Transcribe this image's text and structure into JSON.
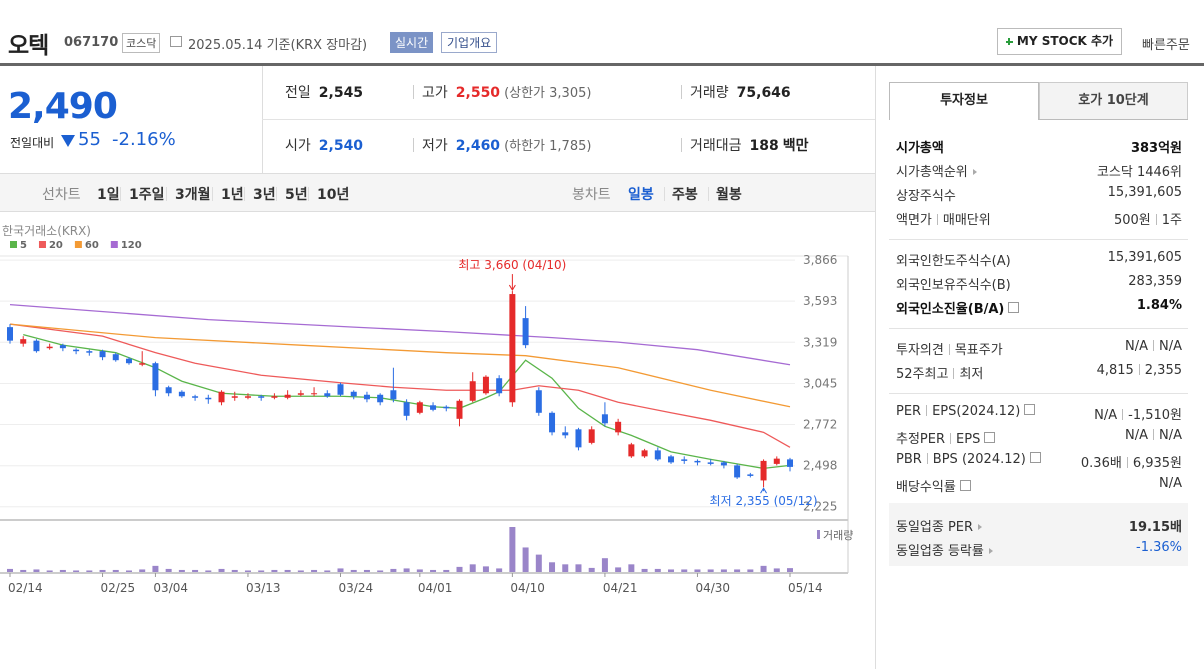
{
  "header": {
    "name": "오텍",
    "code": "067170",
    "market": "코스닥",
    "date": "2025.05.14",
    "basis": "기준(KRX 장마감)",
    "realtime": "실시간",
    "overview": "기업개요",
    "mystock": "MY STOCK 추가",
    "quick_order": "빠른주문"
  },
  "price": {
    "current": "2,490",
    "change_label": "전일대비",
    "change": "55",
    "change_pct": "-2.16%"
  },
  "stats": [
    {
      "label": "전일",
      "value": "2,545"
    },
    {
      "label": "고가",
      "value": "2,550",
      "note": "(상한가 3,305)"
    },
    {
      "label": "거래량",
      "value": "75,646"
    },
    {
      "label": "시가",
      "value": "2,540"
    },
    {
      "label": "저가",
      "value": "2,460",
      "note": "(하한가 1,785)"
    },
    {
      "label": "거래대금",
      "value": "188",
      "unit": "백만"
    }
  ],
  "period_tabs": {
    "line_label": "선차트",
    "line": [
      "1일",
      "1주일",
      "3개월",
      "1년",
      "3년",
      "5년",
      "10년"
    ],
    "candle_label": "봉차트",
    "candle": [
      "일봉",
      "주봉",
      "월봉"
    ]
  },
  "chart_data": {
    "type": "candlestick",
    "source": "한국거래소(KRX)",
    "categories": [
      "02/14",
      null,
      null,
      null,
      null,
      null,
      null,
      "02/25",
      null,
      null,
      null,
      "03/04",
      null,
      null,
      null,
      null,
      null,
      null,
      "03/13",
      null,
      null,
      null,
      null,
      null,
      null,
      "03/24",
      null,
      null,
      null,
      null,
      null,
      "04/01",
      null,
      null,
      null,
      null,
      null,
      null,
      "04/10",
      null,
      null,
      null,
      null,
      null,
      null,
      "04/21",
      null,
      null,
      null,
      null,
      null,
      null,
      "04/30",
      null,
      null,
      null,
      null,
      null,
      null,
      "05/14"
    ],
    "open": [
      3420,
      3310,
      3330,
      3280,
      3300,
      3270,
      3260,
      3260,
      3240,
      3210,
      3170,
      3180,
      3020,
      2990,
      2960,
      2950,
      2920,
      2950,
      2950,
      2960,
      2950,
      2950,
      2970,
      2980,
      2980,
      3040,
      2990,
      2970,
      2970,
      3000,
      2920,
      2850,
      2900,
      2890,
      2810,
      2930,
      2980,
      3080,
      2920,
      3480,
      3000,
      2850,
      2720,
      2740,
      2650,
      2840,
      2720,
      2560,
      2560,
      2600,
      2560,
      2540,
      2530,
      2520,
      2520,
      2500,
      2440,
      2400,
      2510,
      2540
    ],
    "high": [
      3440,
      3360,
      3340,
      3310,
      3310,
      3280,
      3270,
      3270,
      3250,
      3220,
      3260,
      3190,
      3030,
      3000,
      2970,
      2970,
      3000,
      2990,
      2980,
      2970,
      2980,
      3000,
      3000,
      3020,
      3000,
      3050,
      3000,
      2990,
      2980,
      3150,
      2940,
      2930,
      2920,
      2900,
      2940,
      3120,
      3100,
      3100,
      3660,
      3560,
      3020,
      2860,
      2760,
      2750,
      2760,
      2920,
      2810,
      2650,
      2610,
      2620,
      2570,
      2560,
      2540,
      2540,
      2530,
      2510,
      2450,
      2540,
      2560,
      2550
    ],
    "low": [
      3310,
      3290,
      3250,
      3270,
      3260,
      3240,
      3230,
      3200,
      3190,
      3170,
      3160,
      2960,
      2960,
      2950,
      2930,
      2910,
      2900,
      2930,
      2940,
      2930,
      2940,
      2940,
      2960,
      2960,
      2950,
      2960,
      2940,
      2920,
      2900,
      2920,
      2800,
      2840,
      2860,
      2860,
      2760,
      2920,
      2970,
      2960,
      2890,
      3280,
      2830,
      2700,
      2680,
      2600,
      2640,
      2760,
      2700,
      2550,
      2550,
      2530,
      2510,
      2510,
      2500,
      2500,
      2480,
      2410,
      2420,
      2355,
      2500,
      2460
    ],
    "close": [
      3330,
      3340,
      3260,
      3290,
      3280,
      3260,
      3250,
      3220,
      3200,
      3180,
      3180,
      3000,
      2980,
      2960,
      2950,
      2940,
      2990,
      2960,
      2960,
      2950,
      2960,
      2970,
      2980,
      2980,
      2960,
      2970,
      2960,
      2940,
      2920,
      2940,
      2830,
      2920,
      2870,
      2880,
      2930,
      3060,
      3090,
      2980,
      3640,
      3300,
      2850,
      2720,
      2700,
      2620,
      2740,
      2780,
      2790,
      2640,
      2600,
      2540,
      2520,
      2530,
      2520,
      2510,
      2500,
      2420,
      2430,
      2530,
      2545,
      2490
    ],
    "up_color": "#e52a2a",
    "down_color": "#2b6de3",
    "volume_label": "거래량",
    "volume_color": "#9a85c9",
    "volume": [
      60000,
      40000,
      50000,
      30000,
      40000,
      30000,
      30000,
      40000,
      40000,
      30000,
      50000,
      120000,
      60000,
      40000,
      40000,
      30000,
      60000,
      40000,
      30000,
      30000,
      40000,
      40000,
      30000,
      40000,
      30000,
      70000,
      40000,
      40000,
      30000,
      60000,
      70000,
      50000,
      40000,
      40000,
      100000,
      150000,
      110000,
      70000,
      880000,
      480000,
      340000,
      190000,
      150000,
      150000,
      80000,
      270000,
      90000,
      150000,
      60000,
      60000,
      50000,
      50000,
      50000,
      50000,
      50000,
      50000,
      50000,
      120000,
      70000,
      75646
    ],
    "series": [
      {
        "name": "5",
        "color": "#5ab54a",
        "x": [
          1,
          4,
          8,
          11,
          13,
          16,
          20,
          25,
          28,
          30,
          32,
          34,
          36,
          37,
          39,
          41,
          43,
          45,
          47,
          50,
          53,
          55,
          57,
          59
        ],
        "values": [
          3370,
          3300,
          3250,
          3150,
          3060,
          2980,
          2960,
          2960,
          2950,
          2920,
          2890,
          2880,
          2950,
          2990,
          3200,
          3080,
          2880,
          2760,
          2700,
          2590,
          2540,
          2510,
          2480,
          2500
        ]
      },
      {
        "name": "20",
        "color": "#ee5a5a",
        "x": [
          0,
          7,
          11,
          14,
          19,
          25,
          29,
          33,
          38,
          40,
          43,
          46,
          50,
          53,
          57,
          59
        ],
        "values": [
          3440,
          3360,
          3250,
          3180,
          3100,
          3050,
          3020,
          3000,
          3000,
          3030,
          3000,
          2920,
          2850,
          2800,
          2720,
          2620
        ]
      },
      {
        "name": "60",
        "color": "#f39a34",
        "x": [
          0,
          11,
          22,
          33,
          39,
          46,
          53,
          59
        ],
        "values": [
          3440,
          3350,
          3300,
          3250,
          3230,
          3150,
          3000,
          2890
        ]
      },
      {
        "name": "120",
        "color": "#a66bd3",
        "x": [
          0,
          15,
          26,
          33,
          41,
          46,
          52,
          59
        ],
        "values": [
          3570,
          3470,
          3420,
          3390,
          3350,
          3320,
          3270,
          3170
        ]
      }
    ],
    "annotations": [
      {
        "text": "최고 3,660 (04/10)",
        "x": 38
      },
      {
        "text": "최저 2,355 (05/12)",
        "x": 57
      }
    ],
    "ylim": [
      2150,
      3880
    ],
    "yticks": [
      {
        "value": 3866,
        "label": "3,866"
      },
      {
        "value": 3593,
        "label": "3,593"
      },
      {
        "value": 3319,
        "label": "3,319"
      },
      {
        "value": 3045,
        "label": "3,045"
      },
      {
        "value": 2772,
        "label": "2,772"
      },
      {
        "value": 2498,
        "label": "2,498"
      },
      {
        "value": 2225,
        "label": "2,225"
      }
    ],
    "grid": true
  },
  "info_panel": {
    "tabs": [
      "투자정보",
      "호가 10단계"
    ],
    "groups": [
      [
        {
          "label": [
            "시가총액"
          ],
          "value": [
            "383억원"
          ]
        },
        {
          "label": [
            "시가총액순위"
          ],
          "value": [
            "코스닥 1446위"
          ]
        },
        {
          "label": [
            "상장주식수"
          ],
          "value": [
            "15,391,605"
          ]
        },
        {
          "label": [
            "액면가",
            "매매단위"
          ],
          "value": [
            "500원",
            "1주"
          ]
        }
      ],
      [
        {
          "label": [
            "외국인한도주식수(A)"
          ],
          "value": [
            "15,391,605"
          ]
        },
        {
          "label": [
            "외국인보유주식수(B)"
          ],
          "value": [
            "283,359"
          ]
        },
        {
          "label": [
            "외국인소진율(B/A)"
          ],
          "value": [
            "1.84%"
          ]
        }
      ],
      [
        {
          "label": [
            "투자의견",
            "목표주가"
          ],
          "value": [
            "N/A",
            "N/A"
          ]
        },
        {
          "label": [
            "52주최고",
            "최저"
          ],
          "value": [
            "4,815",
            "2,355"
          ]
        }
      ],
      [
        {
          "label": [
            "PER",
            "EPS(2024.12)"
          ],
          "value": [
            "N/A",
            "-1,510원"
          ]
        },
        {
          "label": [
            "추정PER",
            "EPS"
          ],
          "value": [
            "N/A",
            "N/A"
          ]
        },
        {
          "label": [
            "PBR",
            "BPS (2024.12)"
          ],
          "value": [
            "0.36배",
            "6,935원"
          ]
        },
        {
          "label": [
            "배당수익률"
          ],
          "value": [
            "N/A"
          ]
        }
      ],
      [
        {
          "label": [
            "동일업종 PER"
          ],
          "value": [
            "19.15배"
          ]
        },
        {
          "label": [
            "동일업종 등락률"
          ],
          "value": [
            "-1.36%"
          ]
        }
      ]
    ]
  }
}
